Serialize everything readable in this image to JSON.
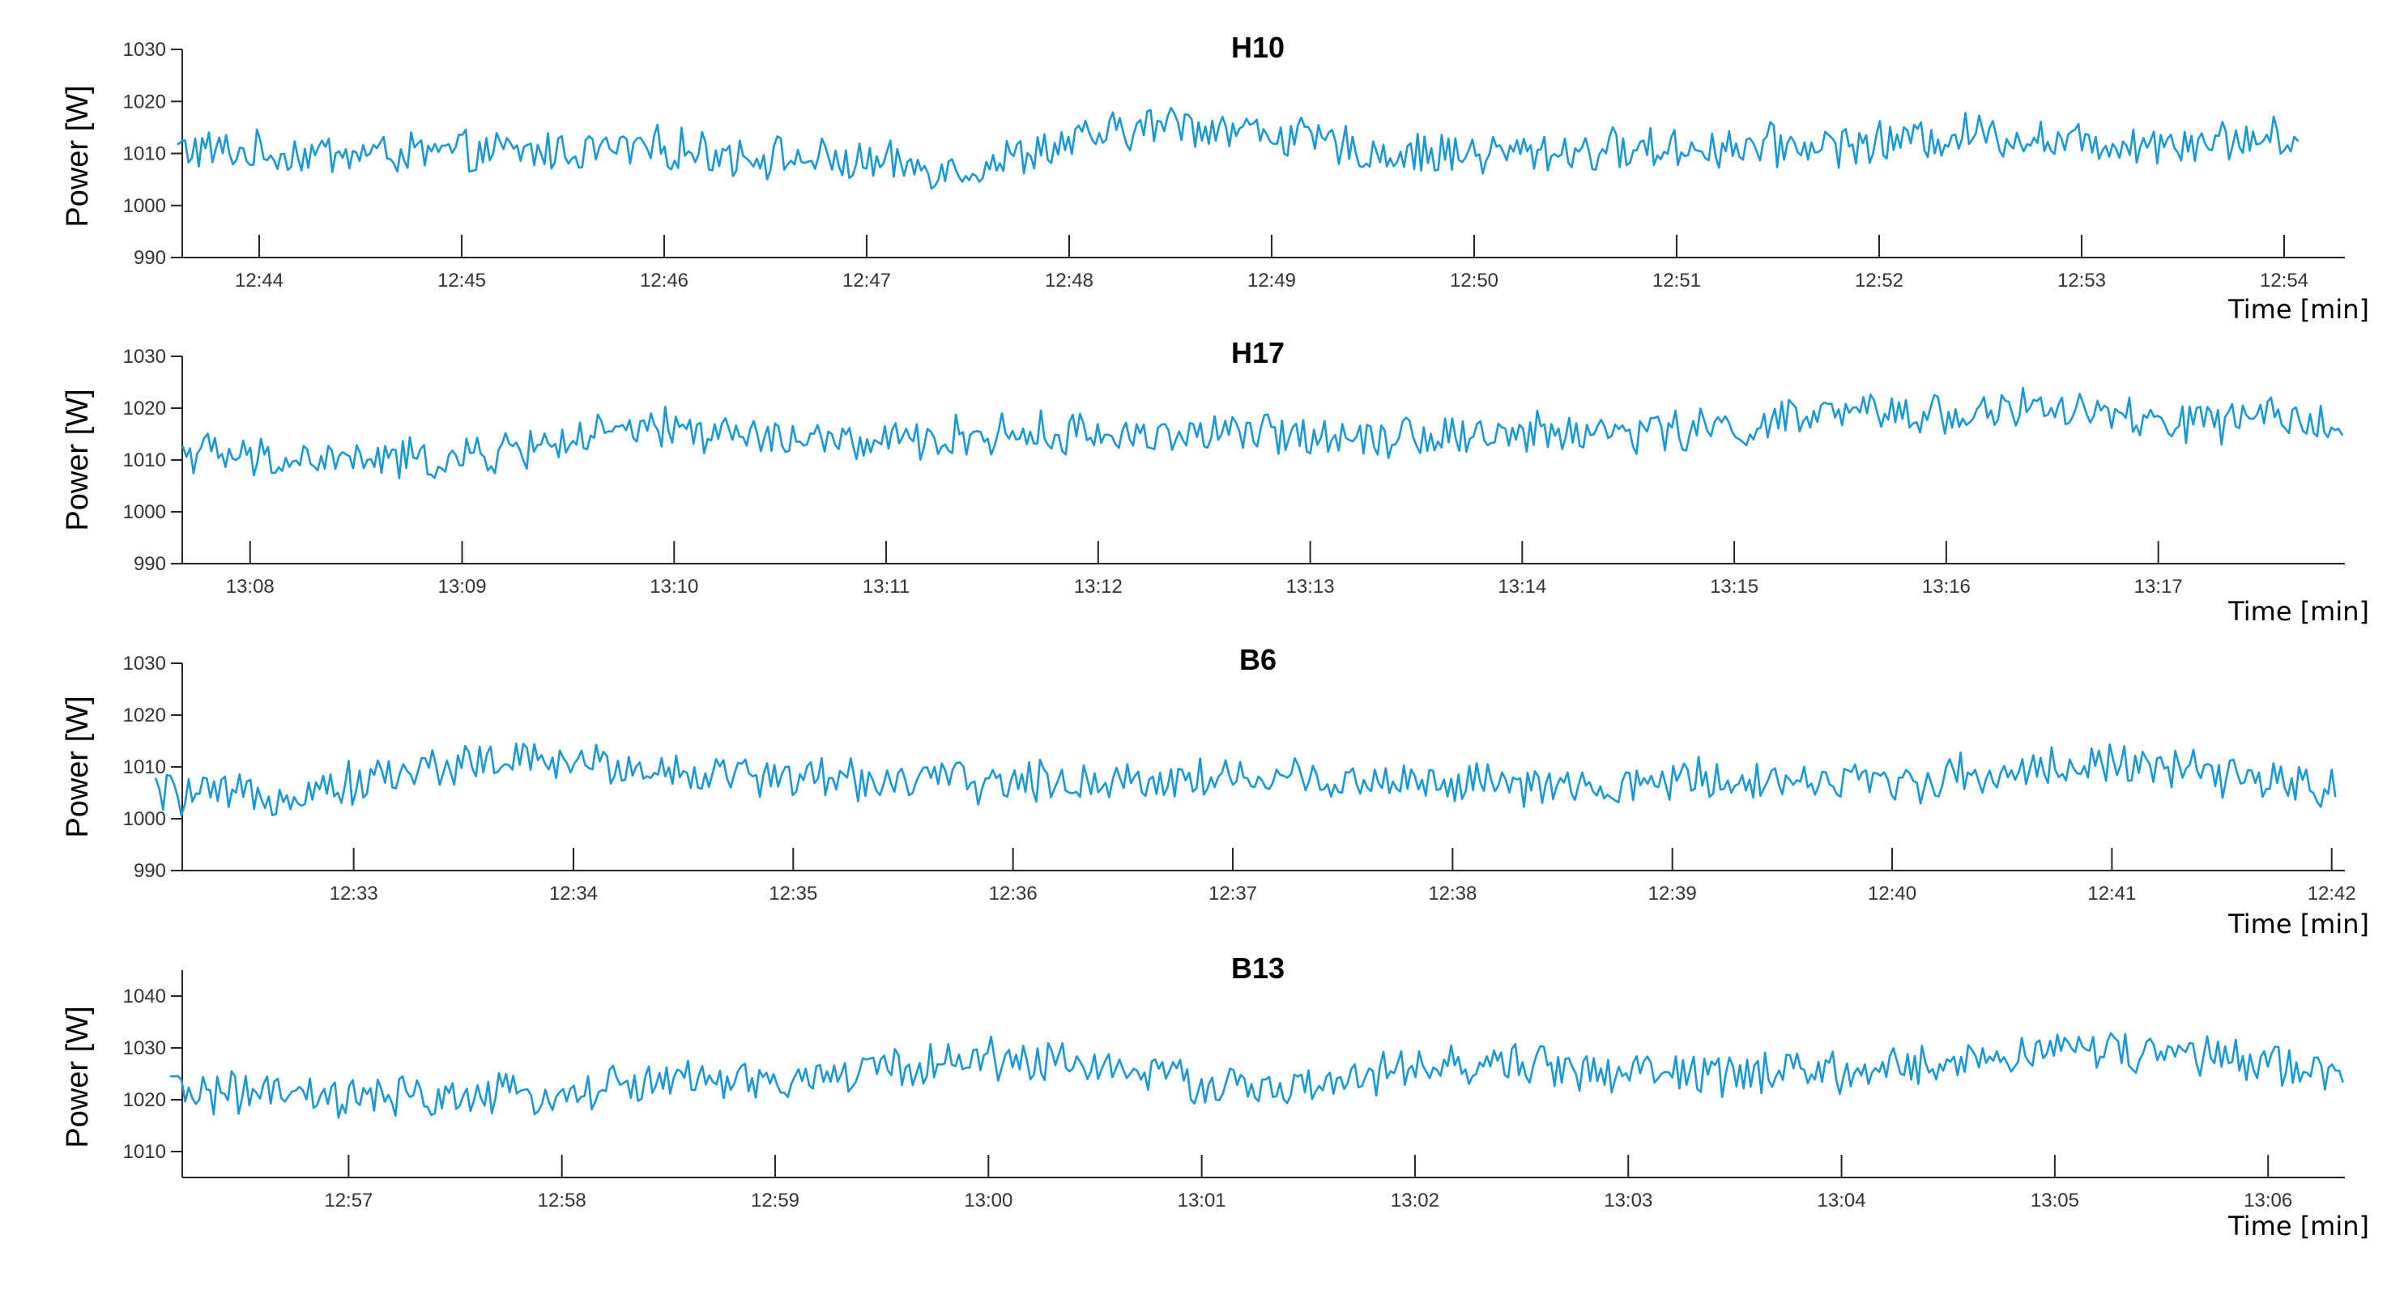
{
  "chart_data": [
    {
      "type": "line",
      "title": "H10",
      "ylabel": "Power [W]",
      "xlabel": "Time [min]",
      "ylim": [
        990,
        1030
      ],
      "yticks": [
        "990",
        "1000",
        "1010",
        "1020",
        "1030"
      ],
      "xlim": [
        12.727,
        12.905
      ],
      "xticks": [
        "12:44",
        "12:45",
        "12:46",
        "12:47",
        "12:48",
        "12:49",
        "12:50",
        "12:51",
        "12:52",
        "12:53",
        "12:54"
      ],
      "grid": false,
      "line_color": "#1a98d5",
      "series": [
        {
          "x_start": "12:43:36",
          "x_end": "12:54:04",
          "sample_count": 620,
          "trend_points": [
            [
              "12:43:36",
              1011
            ],
            [
              "12:44:00",
              1010
            ],
            [
              "12:45:00",
              1010
            ],
            [
              "12:46:00",
              1011
            ],
            [
              "12:47:00",
              1008
            ],
            [
              "12:47:30",
              1007
            ],
            [
              "12:48:00",
              1012
            ],
            [
              "12:48:30",
              1016
            ],
            [
              "12:49:00",
              1014
            ],
            [
              "12:49:30",
              1010
            ],
            [
              "12:50:00",
              1010
            ],
            [
              "12:51:00",
              1011
            ],
            [
              "12:52:00",
              1012
            ],
            [
              "12:52:30",
              1014
            ],
            [
              "12:53:00",
              1012
            ],
            [
              "12:54:04",
              1013
            ]
          ],
          "fluctuation_amplitude": 3.5
        }
      ]
    },
    {
      "type": "line",
      "title": "H17",
      "ylabel": "Power [W]",
      "xlabel": "Time [min]",
      "ylim": [
        990,
        1030
      ],
      "yticks": [
        "990",
        "1000",
        "1010",
        "1020",
        "1030"
      ],
      "xlim": [
        13.128,
        13.298
      ],
      "xticks": [
        "13:08",
        "13:09",
        "13:10",
        "13:11",
        "13:12",
        "13:13",
        "13:14",
        "13:15",
        "13:16",
        "13:17"
      ],
      "grid": false,
      "line_color": "#1a98d5",
      "series": [
        {
          "x_start": "13:07:41",
          "x_end": "13:17:52",
          "sample_count": 610,
          "trend_points": [
            [
              "13:07:41",
              1012
            ],
            [
              "13:08:00",
              1010
            ],
            [
              "13:08:30",
              1010
            ],
            [
              "13:09:00",
              1010
            ],
            [
              "13:09:30",
              1014
            ],
            [
              "13:10:00",
              1016
            ],
            [
              "13:10:30",
              1014
            ],
            [
              "13:11:00",
              1013
            ],
            [
              "13:11:30",
              1015
            ],
            [
              "13:12:00",
              1015
            ],
            [
              "13:13:00",
              1015
            ],
            [
              "13:14:00",
              1015
            ],
            [
              "13:15:00",
              1016
            ],
            [
              "13:15:30",
              1019
            ],
            [
              "13:16:00",
              1019
            ],
            [
              "13:16:30",
              1020
            ],
            [
              "13:17:00",
              1017
            ],
            [
              "13:17:52",
              1018
            ]
          ],
          "fluctuation_amplitude": 3.5
        }
      ]
    },
    {
      "type": "line",
      "title": "B6",
      "ylabel": "Power [W]",
      "xlabel": "Time [min]",
      "ylim": [
        990,
        1030
      ],
      "yticks": [
        "990",
        "1000",
        "1010",
        "1020",
        "1030"
      ],
      "xlim": [
        12.537,
        12.701
      ],
      "xticks": [
        "12:33",
        "12:34",
        "12:35",
        "12:36",
        "12:37",
        "12:38",
        "12:39",
        "12:40",
        "12:41",
        "12:42"
      ],
      "grid": false,
      "line_color": "#1a98d5",
      "series": [
        {
          "x_start": "12:32:06",
          "x_end": "12:42:01",
          "sample_count": 600,
          "trend_points": [
            [
              "12:32:06",
              1005
            ],
            [
              "12:32:30",
              1004
            ],
            [
              "12:33:00",
              1007
            ],
            [
              "12:33:30",
              1011
            ],
            [
              "12:34:00",
              1011
            ],
            [
              "12:34:30",
              1009
            ],
            [
              "12:35:00",
              1008
            ],
            [
              "12:36:00",
              1007
            ],
            [
              "12:37:00",
              1008
            ],
            [
              "12:38:00",
              1007
            ],
            [
              "12:38:45",
              1005
            ],
            [
              "12:39:00",
              1008
            ],
            [
              "12:40:00",
              1007
            ],
            [
              "12:40:30",
              1009
            ],
            [
              "12:41:00",
              1011
            ],
            [
              "12:41:30",
              1008
            ],
            [
              "12:42:01",
              1006
            ]
          ],
          "fluctuation_amplitude": 3.5
        }
      ]
    },
    {
      "type": "line",
      "title": "B13",
      "ylabel": "Power [W]",
      "xlabel": "Time [min]",
      "ylim": [
        1005,
        1045
      ],
      "yticks": [
        "1010",
        "1020",
        "1030",
        "1040"
      ],
      "xlim": [
        12.937,
        13.106
      ],
      "xticks": [
        "12:57",
        "12:58",
        "12:59",
        "13:00",
        "13:01",
        "13:02",
        "13:03",
        "13:04",
        "13:05",
        "13:06"
      ],
      "grid": false,
      "line_color": "#1a98d5",
      "series": [
        {
          "x_start": "12:56:10",
          "x_end": "13:06:21",
          "sample_count": 610,
          "trend_points": [
            [
              "12:56:10",
              1022
            ],
            [
              "12:57:00",
              1020
            ],
            [
              "12:58:00",
              1021
            ],
            [
              "12:58:30",
              1024
            ],
            [
              "12:59:00",
              1023
            ],
            [
              "12:59:30",
              1026
            ],
            [
              "13:00:00",
              1028
            ],
            [
              "13:00:30",
              1027
            ],
            [
              "13:01:00",
              1023
            ],
            [
              "13:01:30",
              1022
            ],
            [
              "13:02:00",
              1026
            ],
            [
              "13:02:30",
              1027
            ],
            [
              "13:03:00",
              1025
            ],
            [
              "13:04:00",
              1025
            ],
            [
              "13:04:30",
              1027
            ],
            [
              "13:05:00",
              1030
            ],
            [
              "13:05:30",
              1029
            ],
            [
              "13:06:21",
              1025
            ]
          ],
          "fluctuation_amplitude": 3.5
        }
      ]
    }
  ]
}
